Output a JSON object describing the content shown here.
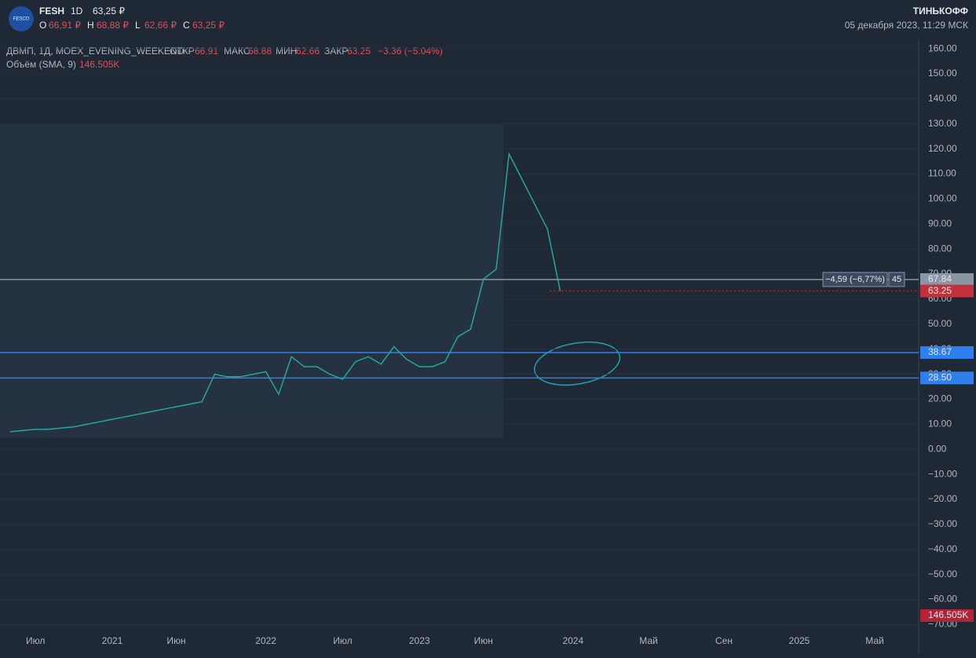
{
  "header": {
    "logo": "FESCO",
    "ticker": "FESH",
    "interval": "1D",
    "price": "63,25 ₽",
    "ohlc": [
      {
        "k": "O",
        "v": "66,91 ₽"
      },
      {
        "k": "H",
        "v": "68,88 ₽"
      },
      {
        "k": "L",
        "v": "62,66 ₽"
      },
      {
        "k": "C",
        "v": "63,25 ₽"
      }
    ],
    "brand": "ТИНЬКОФФ",
    "datetime": "05 декабря 2023, 11:29 МСК"
  },
  "legend": {
    "symbol": "ДВМП, 1Д, MOEX_EVENING_WEEKEND",
    "open_label": "ОТКР",
    "open": "66.91",
    "high_label": "МАКС",
    "high": "68.88",
    "low_label": "МИН",
    "low": "62.66",
    "close_label": "ЗАКР",
    "close": "63.25",
    "change": "−3.36 (−5.04%)",
    "volume_label": "Объём (SMA, 9)",
    "volume": "146.505K"
  },
  "chart_data": {
    "type": "line",
    "categories": [
      null,
      null,
      "Июл",
      null,
      null,
      null,
      null,
      null,
      "2021",
      null,
      null,
      null,
      null,
      "Июн",
      null,
      null,
      null,
      null,
      null,
      null,
      "2022",
      null,
      null,
      null,
      null,
      null,
      "Июл",
      null,
      null,
      null,
      null,
      null,
      "2023",
      null,
      null,
      null,
      null,
      "Июн",
      null,
      null,
      null,
      null,
      null,
      null,
      "2024",
      null,
      null,
      null,
      "Май",
      null,
      null,
      null,
      "Сен",
      null,
      null,
      null,
      "2025",
      null,
      null,
      null,
      "Май",
      null,
      null
    ],
    "series": [
      {
        "name": "FESH",
        "color": "#26a69a",
        "values": [
          7,
          7.5,
          8,
          8,
          8.5,
          9,
          10,
          11,
          12,
          13,
          14,
          15,
          16,
          17,
          18,
          19,
          30,
          29,
          29,
          30,
          31,
          22,
          37,
          33,
          33,
          30,
          28,
          35,
          37,
          34,
          41,
          36,
          33,
          33,
          35,
          45,
          48,
          68,
          72,
          118,
          108,
          98,
          88,
          63.25,
          null,
          null,
          null,
          null,
          null,
          null,
          null,
          null,
          null,
          null,
          null,
          null,
          null,
          null,
          null,
          null,
          null,
          null,
          null
        ]
      }
    ],
    "ylim": [
      -73,
      163.8
    ],
    "yticks": [
      {
        "value": 160,
        "label": "160.00"
      },
      {
        "value": 150,
        "label": "150.00"
      },
      {
        "value": 140,
        "label": "140.00"
      },
      {
        "value": 130,
        "label": "130.00"
      },
      {
        "value": 120,
        "label": "120.00"
      },
      {
        "value": 110,
        "label": "110.00"
      },
      {
        "value": 100,
        "label": "100.00"
      },
      {
        "value": 90,
        "label": "90.00"
      },
      {
        "value": 80,
        "label": "80.00"
      },
      {
        "value": 70,
        "label": "70.00"
      },
      {
        "value": 60,
        "label": "60.00"
      },
      {
        "value": 50,
        "label": "50.00"
      },
      {
        "value": 40,
        "label": "40.00"
      },
      {
        "value": 30,
        "label": "30.00"
      },
      {
        "value": 20,
        "label": "20.00"
      },
      {
        "value": 10,
        "label": "10.00"
      },
      {
        "value": 0,
        "label": "0.00"
      },
      {
        "value": -10,
        "label": "−10.00"
      },
      {
        "value": -20,
        "label": "−20.00"
      },
      {
        "value": -30,
        "label": "−30.00"
      },
      {
        "value": -40,
        "label": "−40.00"
      },
      {
        "value": -50,
        "label": "−50.00"
      },
      {
        "value": -60,
        "label": "−60.00"
      },
      {
        "value": -70,
        "label": "−70.00"
      }
    ],
    "price_lines": [
      {
        "value": 67.84,
        "label": "67.84",
        "color": "#8a96a6"
      },
      {
        "value": 63.25,
        "label": "63.25",
        "color": "#c0313a"
      },
      {
        "value": 38.67,
        "label": "38.67",
        "color": "#2f80ed"
      },
      {
        "value": 28.5,
        "label": "28.50",
        "color": "#2f80ed"
      }
    ],
    "measure": {
      "text": "−4,59 (−6,77%)",
      "bars": "45"
    },
    "volume_tag": "146.505K"
  }
}
